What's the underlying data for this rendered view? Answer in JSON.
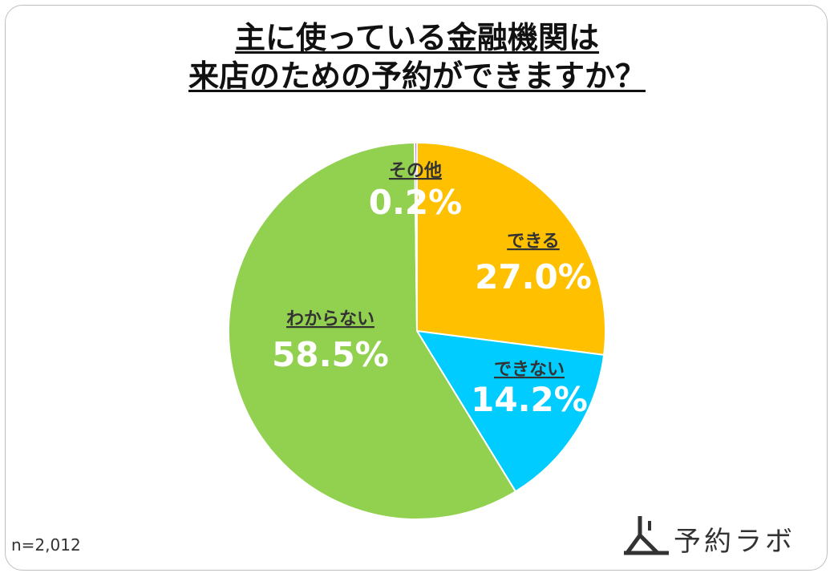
{
  "title_line1": "主に使っている金融機関は",
  "title_line2": "来店のための予約ができますか？",
  "sample_note": "n=2,012",
  "brand_name": "予約ラボ",
  "brand_icon": "logo-icon",
  "chart_data": {
    "type": "pie",
    "title": "主に使っている金融機関は来店のための予約ができますか？",
    "start_angle_deg": 0,
    "direction": "clockwise",
    "slices": [
      {
        "label": "できる",
        "value": 27.0,
        "value_label": "27.0%",
        "color": "#FFC000"
      },
      {
        "label": "できない",
        "value": 14.2,
        "value_label": "14.2%",
        "color": "#00CCFF"
      },
      {
        "label": "わからない",
        "value": 58.5,
        "value_label": "58.5%",
        "color": "#92D050"
      },
      {
        "label": "その他",
        "value": 0.2,
        "value_label": "0.2%",
        "color": "#CC66CC"
      }
    ]
  }
}
